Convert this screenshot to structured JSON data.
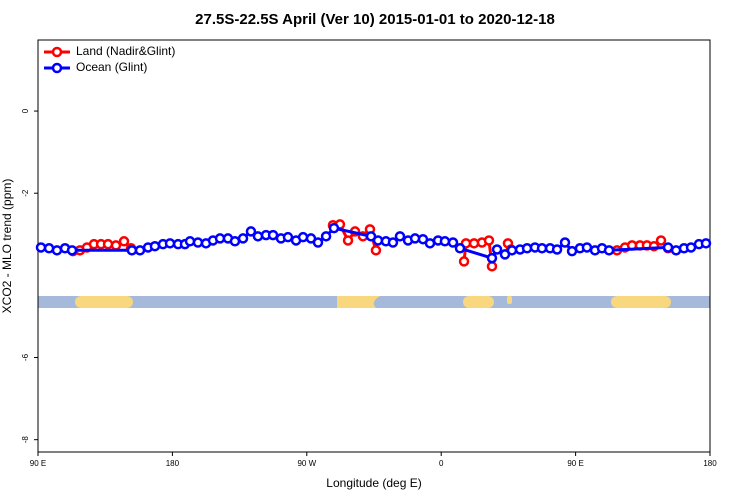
{
  "chart_data": {
    "type": "line",
    "title": "27.5S-22.5S April (Ver 10)   2015-01-01 to 2020-12-18",
    "x_label": "Longitude (deg E)",
    "y_label": "XCO2 - MLO trend (ppm)",
    "xlim": [
      90,
      540
    ],
    "ylim": [
      -8.3,
      1.73
    ],
    "xticks": [
      {
        "value": 90,
        "label": "90 E"
      },
      180,
      {
        "value": 270,
        "label": "90 W"
      },
      {
        "value": 360,
        "label": "0"
      },
      {
        "value": 450,
        "label": "90 E"
      },
      {
        "value": 540,
        "label": "180"
      }
    ],
    "yticks": [
      -8,
      -6,
      -2,
      0
    ],
    "legend": "top-left",
    "series": [
      {
        "name": "Land (Nadir&Glint)",
        "color": "#ff0000",
        "x": [
          113.4,
          118.1,
          122.8,
          127.5,
          132.2,
          136.9,
          142.2,
          147.6,
          152.3,
          null,
          287.5,
          292.2,
          297.6,
          302.3,
          307.6,
          312.3,
          316.3,
          null,
          375.3,
          376.6,
          382.0,
          387.3,
          392.0,
          394.0,
          null,
          404.7,
          406.7,
          null,
          477.7,
          483.1,
          487.8,
          493.1,
          497.8,
          502.5,
          507.2,
          511.9
        ],
        "values": [
          -3.41,
          -3.39,
          -3.32,
          -3.24,
          -3.24,
          -3.24,
          -3.27,
          -3.17,
          -3.34,
          null,
          -2.78,
          -2.76,
          -3.15,
          -2.93,
          -3.05,
          -2.88,
          -3.39,
          null,
          -3.66,
          -3.22,
          -3.22,
          -3.2,
          -3.15,
          -3.78,
          null,
          -3.22,
          -3.37,
          null,
          -3.39,
          -3.32,
          -3.27,
          -3.27,
          -3.27,
          -3.29,
          -3.15,
          -3.34
        ]
      },
      {
        "name": "Ocean (Glint)",
        "color": "#0000ff",
        "x": [
          92.0,
          97.4,
          102.7,
          108.1,
          112.8,
          152.9,
          158.3,
          163.7,
          168.3,
          173.7,
          178.4,
          183.8,
          188.4,
          191.8,
          197.1,
          202.5,
          207.2,
          211.9,
          217.2,
          221.9,
          227.3,
          232.6,
          237.3,
          242.7,
          247.4,
          252.7,
          257.4,
          262.8,
          267.5,
          272.8,
          277.5,
          282.9,
          288.2,
          313.0,
          317.7,
          323.0,
          327.7,
          332.4,
          337.8,
          342.5,
          347.8,
          352.5,
          357.9,
          362.5,
          367.9,
          372.6,
          394.0,
          397.4,
          402.7,
          407.4,
          412.8,
          417.5,
          422.8,
          427.5,
          432.9,
          437.6,
          442.9,
          447.6,
          452.9,
          457.6,
          463.0,
          467.7,
          472.4,
          511.9,
          517.3,
          522.6,
          527.3,
          532.6,
          537.3
        ],
        "values": [
          -3.32,
          -3.34,
          -3.39,
          -3.34,
          -3.39,
          -3.39,
          -3.39,
          -3.32,
          -3.29,
          -3.24,
          -3.22,
          -3.24,
          -3.24,
          -3.17,
          -3.2,
          -3.22,
          -3.15,
          -3.1,
          -3.1,
          -3.17,
          -3.1,
          -2.93,
          -3.05,
          -3.02,
          -3.02,
          -3.1,
          -3.07,
          -3.15,
          -3.07,
          -3.1,
          -3.2,
          -3.05,
          -2.85,
          -3.05,
          -3.15,
          -3.17,
          -3.2,
          -3.05,
          -3.15,
          -3.1,
          -3.12,
          -3.22,
          -3.15,
          -3.17,
          -3.2,
          -3.34,
          -3.58,
          -3.37,
          -3.49,
          -3.39,
          -3.37,
          -3.34,
          -3.32,
          -3.34,
          -3.34,
          -3.37,
          -3.2,
          -3.41,
          -3.34,
          -3.32,
          -3.39,
          -3.34,
          -3.39,
          -3.32,
          -3.39,
          -3.34,
          -3.32,
          -3.24,
          -3.22
        ]
      }
    ]
  }
}
